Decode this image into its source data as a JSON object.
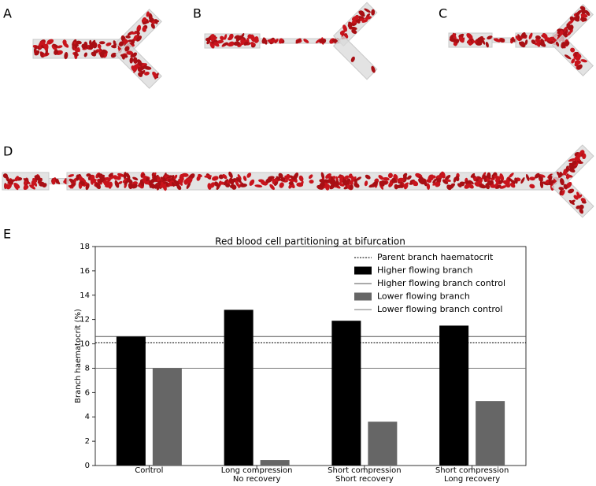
{
  "panel_labels": [
    "A",
    "B",
    "C",
    "D",
    "E"
  ],
  "chart_data": {
    "type": "bar",
    "title": "Red blood cell partitioning at bifurcation",
    "y_label": "Branch haematocrit (%)",
    "categories": [
      "Control",
      "Long compression\nNo recovery",
      "Short compression\nShort recovery",
      "Short compression\nLong recovery"
    ],
    "series": [
      {
        "name": "Higher flowing branch",
        "color": "#000000",
        "values": [
          10.6,
          12.8,
          11.9,
          11.5
        ]
      },
      {
        "name": "Lower flowing branch",
        "color": "#666666",
        "values": [
          8.0,
          0.45,
          3.6,
          5.3
        ]
      }
    ],
    "reference_lines": [
      {
        "name": "Parent branch haematocrit",
        "value": 10.1,
        "color": "#000000",
        "dashed": true
      },
      {
        "name": "Higher flowing branch control",
        "value": 10.6,
        "color": "#555555",
        "dashed": false
      },
      {
        "name": "Lower flowing branch control",
        "value": 8.0,
        "color": "#777777",
        "dashed": false
      }
    ],
    "ylim": [
      0,
      18
    ],
    "yticks": [
      0,
      2,
      4,
      6,
      8,
      10,
      12,
      14,
      16,
      18
    ],
    "legend": "upper right"
  }
}
